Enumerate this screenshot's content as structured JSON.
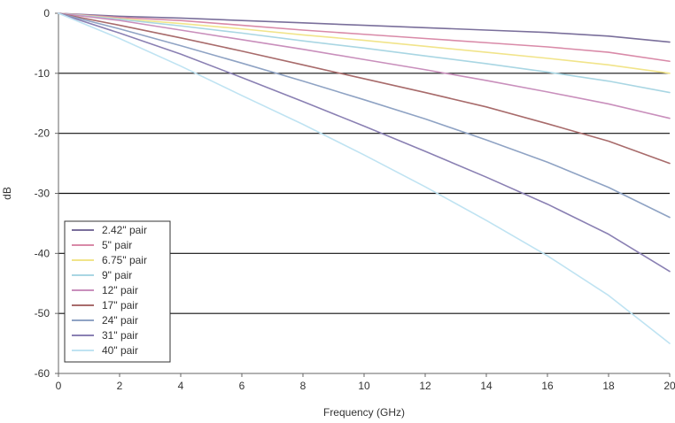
{
  "chart_data": {
    "type": "line",
    "title": "",
    "xlabel": "Frequency (GHz)",
    "ylabel": "dB",
    "xlim": [
      0,
      20
    ],
    "ylim": [
      -60,
      0
    ],
    "x_ticks": [
      "0",
      "2",
      "4",
      "6",
      "8",
      "10",
      "12",
      "14",
      "16",
      "18",
      "20"
    ],
    "y_ticks": [
      "0",
      "-10",
      "-20",
      "-30",
      "-40",
      "-50",
      "-60"
    ],
    "grid": "horizontal",
    "legend_position": "bottom-left",
    "x": [
      0,
      2,
      4,
      6,
      8,
      10,
      12,
      14,
      16,
      18,
      20
    ],
    "series": [
      {
        "name": "2.42\" pair",
        "color": "#7a6f9b",
        "values": [
          0,
          -0.5,
          -0.8,
          -1.2,
          -1.6,
          -2.0,
          -2.4,
          -2.8,
          -3.2,
          -3.8,
          -4.8
        ]
      },
      {
        "name": "5\" pair",
        "color": "#d98aa8",
        "values": [
          0,
          -0.7,
          -1.2,
          -2.0,
          -2.8,
          -3.5,
          -4.2,
          -4.9,
          -5.6,
          -6.5,
          -8.0
        ]
      },
      {
        "name": "6.75\" pair",
        "color": "#f1e48a",
        "values": [
          0,
          -0.9,
          -1.7,
          -2.6,
          -3.6,
          -4.5,
          -5.5,
          -6.5,
          -7.5,
          -8.6,
          -10.0
        ]
      },
      {
        "name": "9\" pair",
        "color": "#a9d6e3",
        "values": [
          0,
          -1.0,
          -2.1,
          -3.3,
          -4.6,
          -5.8,
          -7.1,
          -8.4,
          -9.8,
          -11.3,
          -13.2
        ]
      },
      {
        "name": "12\" pair",
        "color": "#c98fbc",
        "values": [
          0,
          -1.2,
          -2.8,
          -4.4,
          -6.0,
          -7.7,
          -9.4,
          -11.2,
          -13.1,
          -15.1,
          -17.5
        ]
      },
      {
        "name": "17\" pair",
        "color": "#a86b6b",
        "values": [
          0,
          -2.0,
          -4.1,
          -6.3,
          -8.6,
          -10.9,
          -13.2,
          -15.6,
          -18.4,
          -21.3,
          -25.0
        ]
      },
      {
        "name": "24\" pair",
        "color": "#8fa3c4",
        "values": [
          0,
          -2.6,
          -5.4,
          -8.3,
          -11.3,
          -14.4,
          -17.6,
          -21.1,
          -24.8,
          -29.0,
          -34.0
        ]
      },
      {
        "name": "31\" pair",
        "color": "#8a80b3",
        "values": [
          0,
          -3.3,
          -6.8,
          -10.7,
          -14.7,
          -18.8,
          -23.0,
          -27.3,
          -31.8,
          -36.8,
          -43.0
        ]
      },
      {
        "name": "40\" pair",
        "color": "#bfe3f2",
        "values": [
          0,
          -4.2,
          -8.8,
          -13.7,
          -18.5,
          -23.6,
          -28.9,
          -34.5,
          -40.4,
          -47.0,
          -55.0
        ]
      }
    ]
  }
}
